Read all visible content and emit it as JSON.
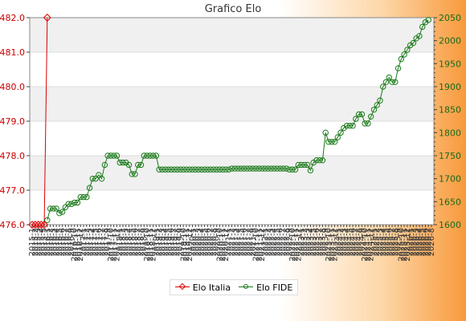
{
  "chart_data": {
    "type": "line",
    "title": "Grafico Elo",
    "legend": [
      "Elo Italia",
      "Elo FIDE"
    ],
    "legend_position": "bottom",
    "colors": {
      "elo_italia": "#dd0000",
      "elo_fide": "#1a7a1a",
      "background_accent": "#f89a3c"
    },
    "left_axis": {
      "min": 476.0,
      "max": 482.0,
      "ticks": [
        "476.0",
        "477.0",
        "478.0",
        "479.0",
        "480.0",
        "481.0",
        "482.0"
      ]
    },
    "right_axis": {
      "min": 1600,
      "max": 2050,
      "ticks": [
        "1600",
        "1650",
        "1700",
        "1750",
        "1800",
        "1850",
        "1900",
        "1950",
        "2000",
        "2050"
      ]
    },
    "grid": true,
    "x_labels": [
      "2015-1",
      "2015-2",
      "2015-3",
      "2015-4",
      "2015-5",
      "2016-1",
      "2016-2",
      "2016-3",
      "2016-4",
      "2016-5",
      "2016-6",
      "2016-7",
      "2016-8",
      "2016-9",
      "2016-10",
      "2016-11",
      "2016-12",
      "2017-1",
      "2017-2",
      "2017-3",
      "2017-4",
      "2017-5",
      "2017-6",
      "2017-7",
      "2017-8",
      "2017-9",
      "2017-10",
      "2017-11",
      "2017-12",
      "2018-1",
      "2018-2",
      "2018-3",
      "2018-4",
      "2018-5",
      "2018-6",
      "2018-7",
      "2018-8",
      "2018-9",
      "2018-10",
      "2018-11",
      "2018-12",
      "2019-1",
      "2019-2",
      "2019-3",
      "2019-4",
      "2019-5",
      "2019-6",
      "2019-7",
      "2019-8",
      "2019-9",
      "2019-10",
      "2019-11",
      "2019-12",
      "2020-1",
      "2020-2",
      "2020-3",
      "2020-4",
      "2020-5",
      "2020-6",
      "2020-7",
      "2020-8",
      "2020-9",
      "2020-10",
      "2020-11",
      "2020-12",
      "2021-1",
      "2021-2",
      "2021-3",
      "2021-4",
      "2021-5",
      "2021-6",
      "2021-7",
      "2021-8",
      "2021-9",
      "2021-10",
      "2021-11",
      "2021-12",
      "2022-1",
      "2022-2",
      "2022-3",
      "2022-4",
      "2022-5",
      "2022-6",
      "2022-7",
      "2022-8",
      "2022-9",
      "2022-10",
      "2022-11",
      "2022-12",
      "2023-1",
      "2023-2",
      "2023-3",
      "2023-4",
      "2023-5",
      "2023-6",
      "2023-7",
      "2023-8",
      "2023-9",
      "2023-10",
      "2023-11",
      "2023-12",
      "2024-1",
      "2024-2",
      "2024-3",
      "2024-4",
      "2024-5",
      "2024-6",
      "2024-7",
      "2024-8",
      "2024-9",
      "2024-10",
      "2024-11",
      "2024-12",
      "2025-1",
      "2025-2",
      "2025-3",
      "2025-4",
      "2025-5",
      "2025-6",
      "2025-7",
      "2025-8",
      "2025-9",
      "2025-10",
      "2025-11",
      "2025-12",
      "2026-1",
      "2026-2",
      "2026-3",
      "2026-4",
      "2026-5",
      "2026-6",
      "2026-7",
      "2026-8"
    ],
    "series": [
      {
        "name": "Elo Italia",
        "axis": "left",
        "start_index": 0,
        "values": [
          476.0,
          476.0,
          476.0,
          476.0,
          476.0,
          482.0
        ]
      },
      {
        "name": "Elo FIDE",
        "axis": "right",
        "start_index": 5,
        "values": [
          1610,
          1635,
          1635,
          1635,
          1625,
          1628,
          1638,
          1645,
          1645,
          1648,
          1648,
          1660,
          1660,
          1660,
          1680,
          1700,
          1700,
          1708,
          1700,
          1730,
          1750,
          1750,
          1750,
          1750,
          1735,
          1735,
          1735,
          1730,
          1710,
          1710,
          1730,
          1730,
          1750,
          1750,
          1750,
          1750,
          1750,
          1720,
          1720,
          1720,
          1720,
          1720,
          1720,
          1720,
          1720,
          1720,
          1720,
          1720,
          1720,
          1720,
          1720,
          1720,
          1720,
          1720,
          1720,
          1720,
          1720,
          1720,
          1720,
          1720,
          1720,
          1722,
          1722,
          1722,
          1722,
          1722,
          1722,
          1722,
          1722,
          1722,
          1722,
          1722,
          1722,
          1722,
          1722,
          1722,
          1722,
          1722,
          1722,
          1722,
          1720,
          1720,
          1720,
          1730,
          1730,
          1730,
          1730,
          1718,
          1735,
          1740,
          1740,
          1740,
          1800,
          1780,
          1780,
          1780,
          1790,
          1800,
          1810,
          1815,
          1815,
          1815,
          1830,
          1840,
          1840,
          1820,
          1820,
          1835,
          1850,
          1860,
          1870,
          1900,
          1910,
          1920,
          1910,
          1910,
          1940,
          1960,
          1970,
          1980,
          1990,
          1995,
          2005,
          2010,
          2030,
          2040,
          2045
        ]
      }
    ]
  }
}
